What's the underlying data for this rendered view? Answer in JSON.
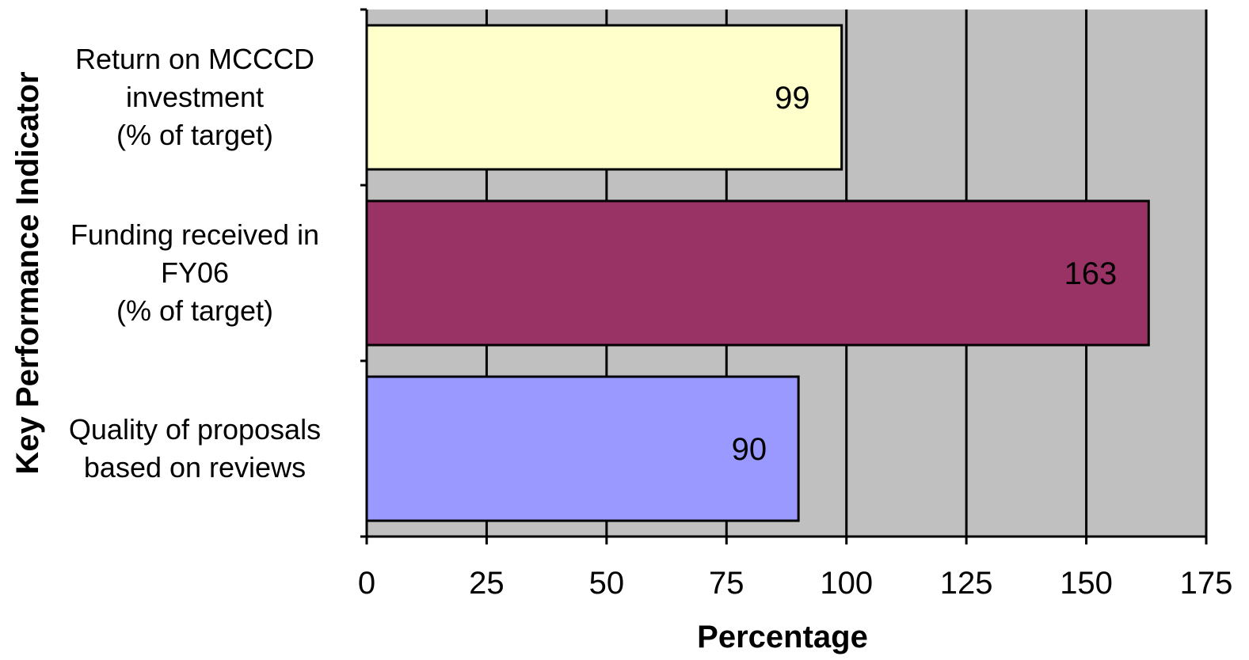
{
  "chart_data": {
    "type": "bar",
    "orientation": "horizontal",
    "categories": [
      [
        "Return on MCCCD",
        "investment",
        "(% of target)"
      ],
      [
        "Funding received in",
        "FY06",
        "(% of target)"
      ],
      [
        "Quality of proposals",
        "based on reviews"
      ]
    ],
    "values": [
      99,
      163,
      90
    ],
    "bar_colors": [
      "#ffffcc",
      "#993366",
      "#9999ff"
    ],
    "data_labels": [
      "99",
      "163",
      "90"
    ],
    "xlabel": "Percentage",
    "ylabel": "Key Performance Indicator",
    "xlim": [
      0,
      175
    ],
    "xticks": [
      0,
      25,
      50,
      75,
      100,
      125,
      150,
      175
    ],
    "xtick_labels": [
      "0",
      "25",
      "50",
      "75",
      "100",
      "125",
      "150",
      "175"
    ],
    "grid": "vertical",
    "plot_background": "#c0c0c0",
    "legend": "none"
  }
}
